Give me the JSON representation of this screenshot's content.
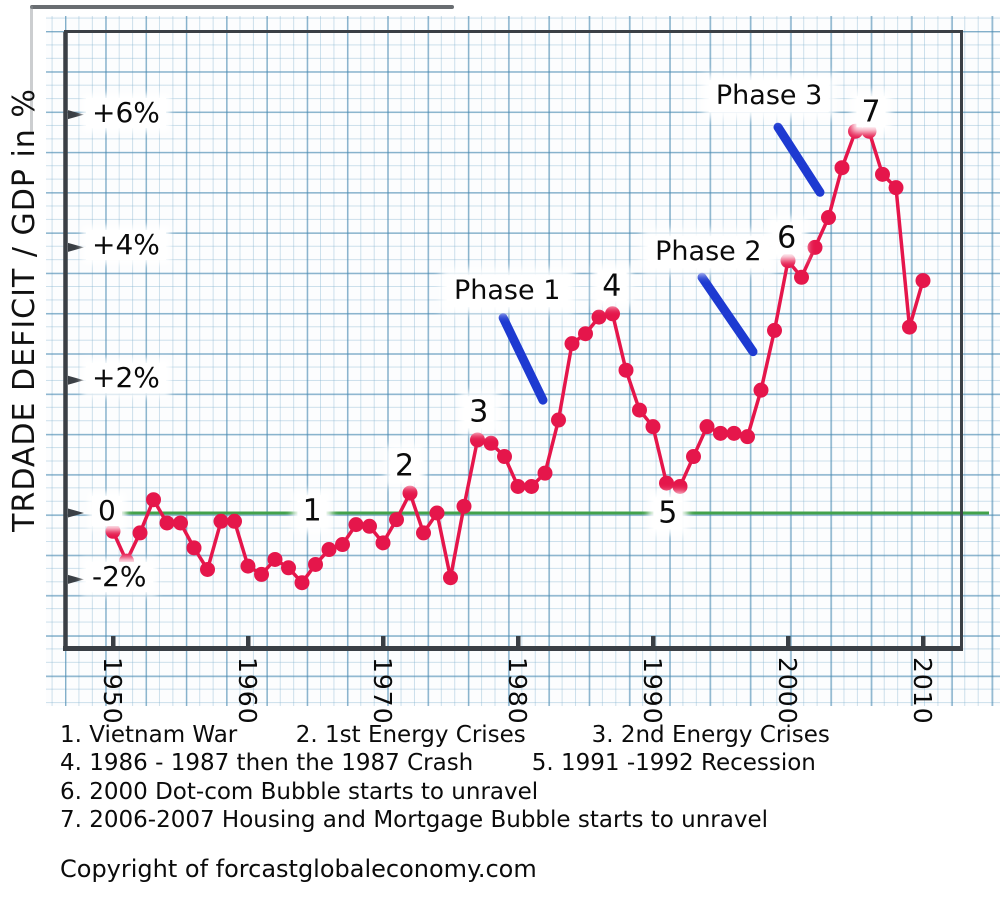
{
  "page": {
    "copyright": "Copyright of forcastglobaleconomy.com"
  },
  "chart_data": {
    "type": "line",
    "title": "",
    "xlabel": "",
    "ylabel": "TRDADE DEFICIT / GDP in %",
    "xlim": [
      1946.5,
      2013
    ],
    "ylim": [
      -2.9,
      7.25
    ],
    "grid": "graph-paper",
    "legend_position": "none",
    "y_scale_note": "negative region compressed 2:1 versus positive region",
    "x": [
      1950,
      1951,
      1952,
      1953,
      1954,
      1955,
      1956,
      1957,
      1958,
      1959,
      1960,
      1961,
      1962,
      1963,
      1964,
      1965,
      1966,
      1967,
      1968,
      1969,
      1970,
      1971,
      1972,
      1973,
      1974,
      1975,
      1976,
      1977,
      1978,
      1979,
      1980,
      1981,
      1982,
      1983,
      1984,
      1985,
      1986,
      1987,
      1988,
      1989,
      1990,
      1991,
      1992,
      1993,
      1994,
      1995,
      1996,
      1997,
      1998,
      1999,
      2000,
      2001,
      2002,
      2003,
      2004,
      2005,
      2006,
      2007,
      2008,
      2009,
      2010
    ],
    "series": [
      {
        "name": "Trade Deficit / GDP (%)",
        "values": [
          -0.55,
          -1.45,
          -0.6,
          0.2,
          -0.3,
          -0.3,
          -1.05,
          -1.7,
          -0.25,
          -0.25,
          -1.6,
          -1.85,
          -1.4,
          -1.65,
          -2.1,
          -1.55,
          -1.1,
          -0.95,
          -0.35,
          -0.4,
          -0.9,
          -0.2,
          0.3,
          -0.6,
          0.0,
          -1.95,
          0.1,
          1.1,
          1.05,
          0.85,
          0.4,
          0.4,
          0.6,
          1.4,
          2.55,
          2.7,
          2.95,
          3.0,
          2.15,
          1.55,
          1.3,
          0.45,
          0.4,
          0.85,
          1.3,
          1.2,
          1.2,
          1.15,
          1.85,
          2.75,
          3.8,
          3.55,
          4.0,
          4.45,
          5.2,
          5.75,
          5.75,
          5.1,
          4.9,
          2.8,
          3.5
        ]
      }
    ],
    "y_ticks": [
      {
        "value": 6,
        "label": "+6%"
      },
      {
        "value": 4,
        "label": "+4%"
      },
      {
        "value": 2,
        "label": "+2%"
      },
      {
        "value": 0,
        "label": "0"
      },
      {
        "value": -2,
        "label": "-2%"
      }
    ],
    "x_ticks": [
      1950,
      1960,
      1970,
      1980,
      1990,
      2000,
      2010
    ],
    "zero_line": {
      "value": 0,
      "style": "solid"
    },
    "annotations": {
      "numbers": [
        {
          "label": "1",
          "year": 1964.75,
          "value": 0.03
        },
        {
          "label": "2",
          "year": 1971.6,
          "value": 0.71
        },
        {
          "label": "3",
          "year": 1977.1,
          "value": 1.52
        },
        {
          "label": "4",
          "year": 1986.95,
          "value": 3.42
        },
        {
          "label": "5",
          "year": 1991.1,
          "value": 0.0
        },
        {
          "label": "6",
          "year": 1999.9,
          "value": 4.14
        },
        {
          "label": "7",
          "year": 2006.15,
          "value": 6.04
        }
      ],
      "phases": [
        {
          "label": "Phase 1",
          "anchor": {
            "year": 1979.2,
            "value": 3.34
          },
          "line": {
            "year1": 1978.9,
            "value1": 2.94,
            "year2": 1981.85,
            "value2": 1.7
          }
        },
        {
          "label": "Phase 2",
          "anchor": {
            "year": 1994.1,
            "value": 3.93
          },
          "line": {
            "year1": 1993.63,
            "value1": 3.55,
            "year2": 1997.41,
            "value2": 2.43
          }
        },
        {
          "label": "Phase 3",
          "anchor": {
            "year": 1998.6,
            "value": 6.28
          },
          "line": {
            "year1": 1999.26,
            "value1": 5.81,
            "year2": 2002.37,
            "value2": 4.83
          }
        }
      ]
    },
    "colors": {
      "series": "#e5164b",
      "zero_line": "#43a24b",
      "phase": "#1e3ad1",
      "axis": "#3a3f45",
      "text": "#0c0c0c",
      "paper_grid_minor": "#c3d9e6",
      "paper_grid_major": "#9cc3d8"
    }
  },
  "legend": {
    "lines": [
      "1. Vietnam War        2. 1st Energy Crises         3. 2nd Energy Crises",
      "4. 1986 - 1987 then the 1987 Crash        5. 1991 -1992 Recession",
      "6. 2000 Dot-com Bubble starts to unravel",
      "7. 2006-2007 Housing and Mortgage Bubble starts to unravel"
    ]
  }
}
